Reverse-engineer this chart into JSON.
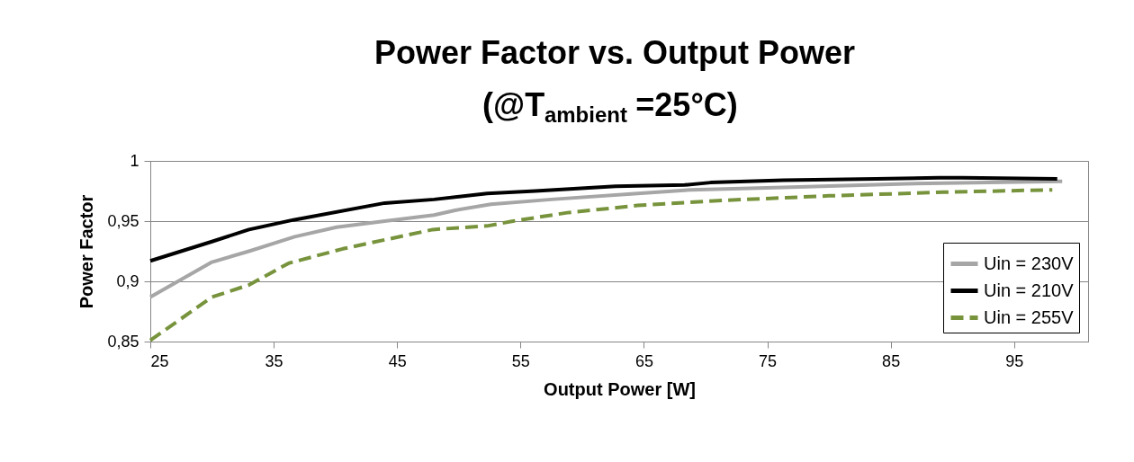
{
  "chart_data": {
    "type": "line",
    "title": "Power Factor vs. Output Power",
    "subtitle": "(@T$_{ambient}$=25°C)",
    "xlabel": "Output Power [W]",
    "ylabel": "Power Factor",
    "xlim": [
      25,
      101
    ],
    "xticks": [
      25,
      35,
      45,
      55,
      65,
      75,
      85,
      95
    ],
    "ylim": [
      0.85,
      1
    ],
    "yticks": [
      {
        "value": 0.85,
        "label": "0,85"
      },
      {
        "value": 0.9,
        "label": "0,9"
      },
      {
        "value": 0.95,
        "label": "0,95"
      },
      {
        "value": 1,
        "label": "1"
      }
    ],
    "grid": "y",
    "legend": "bottom right",
    "marker": "none",
    "series": [
      {
        "name": "Uin = 230V",
        "color": "#a6a6a6",
        "line_style": "solid",
        "x": [
          25,
          30,
          33,
          36.7,
          40.1,
          44,
          48,
          49.7,
          52.6,
          57.5,
          64.5,
          68.8,
          76.3,
          86.3,
          98.9
        ],
        "values": [
          0.887,
          0.916,
          0.925,
          0.937,
          0.945,
          0.95,
          0.955,
          0.959,
          0.964,
          0.968,
          0.973,
          0.976,
          0.978,
          0.981,
          0.983
        ]
      },
      {
        "name": "Uin = 210V",
        "color": "#000000",
        "line_style": "solid",
        "x": [
          25,
          30,
          33,
          36.6,
          44,
          48,
          52.3,
          56.2,
          62.7,
          68.3,
          70.4,
          76.3,
          83.8,
          88.9,
          90.8,
          98.5
        ],
        "values": [
          0.917,
          0.933,
          0.943,
          0.951,
          0.965,
          0.968,
          0.973,
          0.975,
          0.979,
          0.98,
          0.982,
          0.984,
          0.985,
          0.986,
          0.986,
          0.985
        ]
      },
      {
        "name": "Uin = 255V",
        "color": "#77933c",
        "line_style": "dashed",
        "x": [
          25,
          30,
          33,
          36.2,
          40.6,
          47.9,
          52.3,
          54.4,
          58.8,
          64.5,
          71,
          80,
          89.3,
          98.1
        ],
        "values": [
          0.851,
          0.887,
          0.897,
          0.915,
          0.927,
          0.943,
          0.946,
          0.95,
          0.957,
          0.963,
          0.967,
          0.971,
          0.974,
          0.976
        ]
      }
    ]
  }
}
